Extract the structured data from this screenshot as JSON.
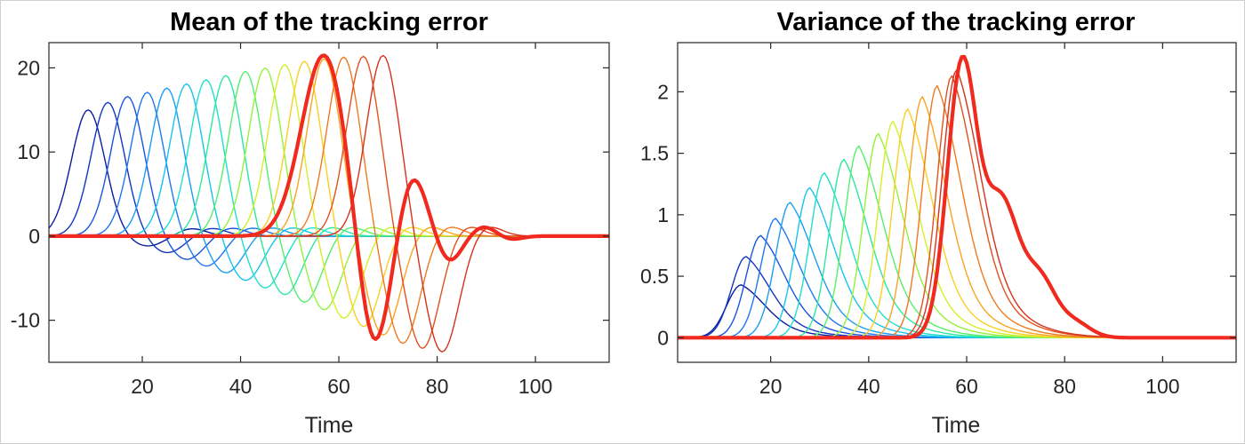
{
  "chart_data": [
    {
      "type": "line",
      "title": "Mean of the tracking error",
      "xlabel": "Time",
      "ylabel": "",
      "xlim": [
        1,
        115
      ],
      "ylim": [
        -15,
        23
      ],
      "xticks": [
        20,
        40,
        60,
        80,
        100
      ],
      "yticks": [
        -10,
        0,
        10,
        20
      ],
      "grid": false,
      "series_count": 17,
      "series_description_colors": "jet colormap from dark blue to red; final series thick red",
      "series": [
        {
          "peak_x": 9,
          "peak_y": 15.0,
          "trough_x": 21,
          "trough_y": -1.2,
          "color": "#0a1fa0"
        },
        {
          "peak_x": 13,
          "peak_y": 15.9,
          "trough_x": 25,
          "trough_y": -2.0,
          "color": "#1436c4"
        },
        {
          "peak_x": 17,
          "peak_y": 16.6,
          "trough_x": 29,
          "trough_y": -2.8,
          "color": "#1a55e0"
        },
        {
          "peak_x": 21,
          "peak_y": 17.1,
          "trough_x": 33,
          "trough_y": -3.6,
          "color": "#1f78f0"
        },
        {
          "peak_x": 25,
          "peak_y": 17.6,
          "trough_x": 37,
          "trough_y": -4.4,
          "color": "#1b9ef2"
        },
        {
          "peak_x": 29,
          "peak_y": 18.1,
          "trough_x": 41,
          "trough_y": -5.3,
          "color": "#18c4ee"
        },
        {
          "peak_x": 33,
          "peak_y": 18.6,
          "trough_x": 45,
          "trough_y": -6.2,
          "color": "#1ee0cc"
        },
        {
          "peak_x": 37,
          "peak_y": 19.1,
          "trough_x": 49,
          "trough_y": -7.0,
          "color": "#2ee8a0"
        },
        {
          "peak_x": 41,
          "peak_y": 19.6,
          "trough_x": 53,
          "trough_y": -7.9,
          "color": "#56ef6a"
        },
        {
          "peak_x": 45,
          "peak_y": 20.0,
          "trough_x": 57,
          "trough_y": -8.8,
          "color": "#95f23c"
        },
        {
          "peak_x": 49,
          "peak_y": 20.4,
          "trough_x": 61,
          "trough_y": -9.8,
          "color": "#d6ee28"
        },
        {
          "peak_x": 53,
          "peak_y": 20.8,
          "trough_x": 65,
          "trough_y": -10.8,
          "color": "#f8d024"
        },
        {
          "peak_x": 57,
          "peak_y": 21.1,
          "trough_x": 69,
          "trough_y": -11.8,
          "color": "#f8a422"
        },
        {
          "peak_x": 61,
          "peak_y": 21.3,
          "trough_x": 73,
          "trough_y": -12.8,
          "color": "#f07a20"
        },
        {
          "peak_x": 65,
          "peak_y": 21.4,
          "trough_x": 77,
          "trough_y": -13.4,
          "color": "#e0521e"
        },
        {
          "peak_x": 69,
          "peak_y": 21.5,
          "trough_x": 81,
          "trough_y": -13.8,
          "color": "#d6321c"
        },
        {
          "peak_x": 57,
          "peak_y": 21.6,
          "trough_x": 67,
          "trough_y": -14.2,
          "second_peak_x": 75,
          "second_peak_y": 7.2,
          "color": "#f02a1e",
          "thick": true
        }
      ]
    },
    {
      "type": "line",
      "title": "Variance of the tracking error",
      "xlabel": "Time",
      "ylabel": "",
      "xlim": [
        1,
        115
      ],
      "ylim": [
        -0.2,
        2.4
      ],
      "xticks": [
        20,
        40,
        60,
        80,
        100
      ],
      "yticks": [
        0,
        0.5,
        1,
        1.5,
        2
      ],
      "ytick_labels": [
        "0",
        "0.5",
        "1",
        "1.5",
        "2"
      ],
      "grid": false,
      "series_count": 17,
      "series": [
        {
          "peak_x": 14,
          "peak_y": 0.43,
          "color": "#0a1fa0"
        },
        {
          "peak_x": 15,
          "peak_y": 0.66,
          "color": "#1436c4"
        },
        {
          "peak_x": 18,
          "peak_y": 0.83,
          "color": "#1a55e0"
        },
        {
          "peak_x": 21,
          "peak_y": 0.97,
          "color": "#1f78f0"
        },
        {
          "peak_x": 24,
          "peak_y": 1.1,
          "color": "#1b9ef2"
        },
        {
          "peak_x": 28,
          "peak_y": 1.22,
          "color": "#18c4ee"
        },
        {
          "peak_x": 31,
          "peak_y": 1.34,
          "color": "#1ee0cc"
        },
        {
          "peak_x": 35,
          "peak_y": 1.45,
          "color": "#2ee8a0"
        },
        {
          "peak_x": 38,
          "peak_y": 1.56,
          "color": "#56ef6a"
        },
        {
          "peak_x": 42,
          "peak_y": 1.66,
          "color": "#95f23c"
        },
        {
          "peak_x": 45,
          "peak_y": 1.76,
          "color": "#d6ee28"
        },
        {
          "peak_x": 48,
          "peak_y": 1.86,
          "color": "#f8d024"
        },
        {
          "peak_x": 51,
          "peak_y": 1.96,
          "color": "#f8a422"
        },
        {
          "peak_x": 54,
          "peak_y": 2.05,
          "color": "#f07a20"
        },
        {
          "peak_x": 57,
          "peak_y": 2.13,
          "color": "#e0521e"
        },
        {
          "peak_x": 58,
          "peak_y": 2.18,
          "color": "#d6321c"
        },
        {
          "peak_x": 59,
          "peak_y": 2.19,
          "shoulder_x": 67,
          "shoulder_y": 1.41,
          "dip_x": 64,
          "dip_y": 1.24,
          "color": "#f02a1e",
          "thick": true
        }
      ]
    }
  ]
}
